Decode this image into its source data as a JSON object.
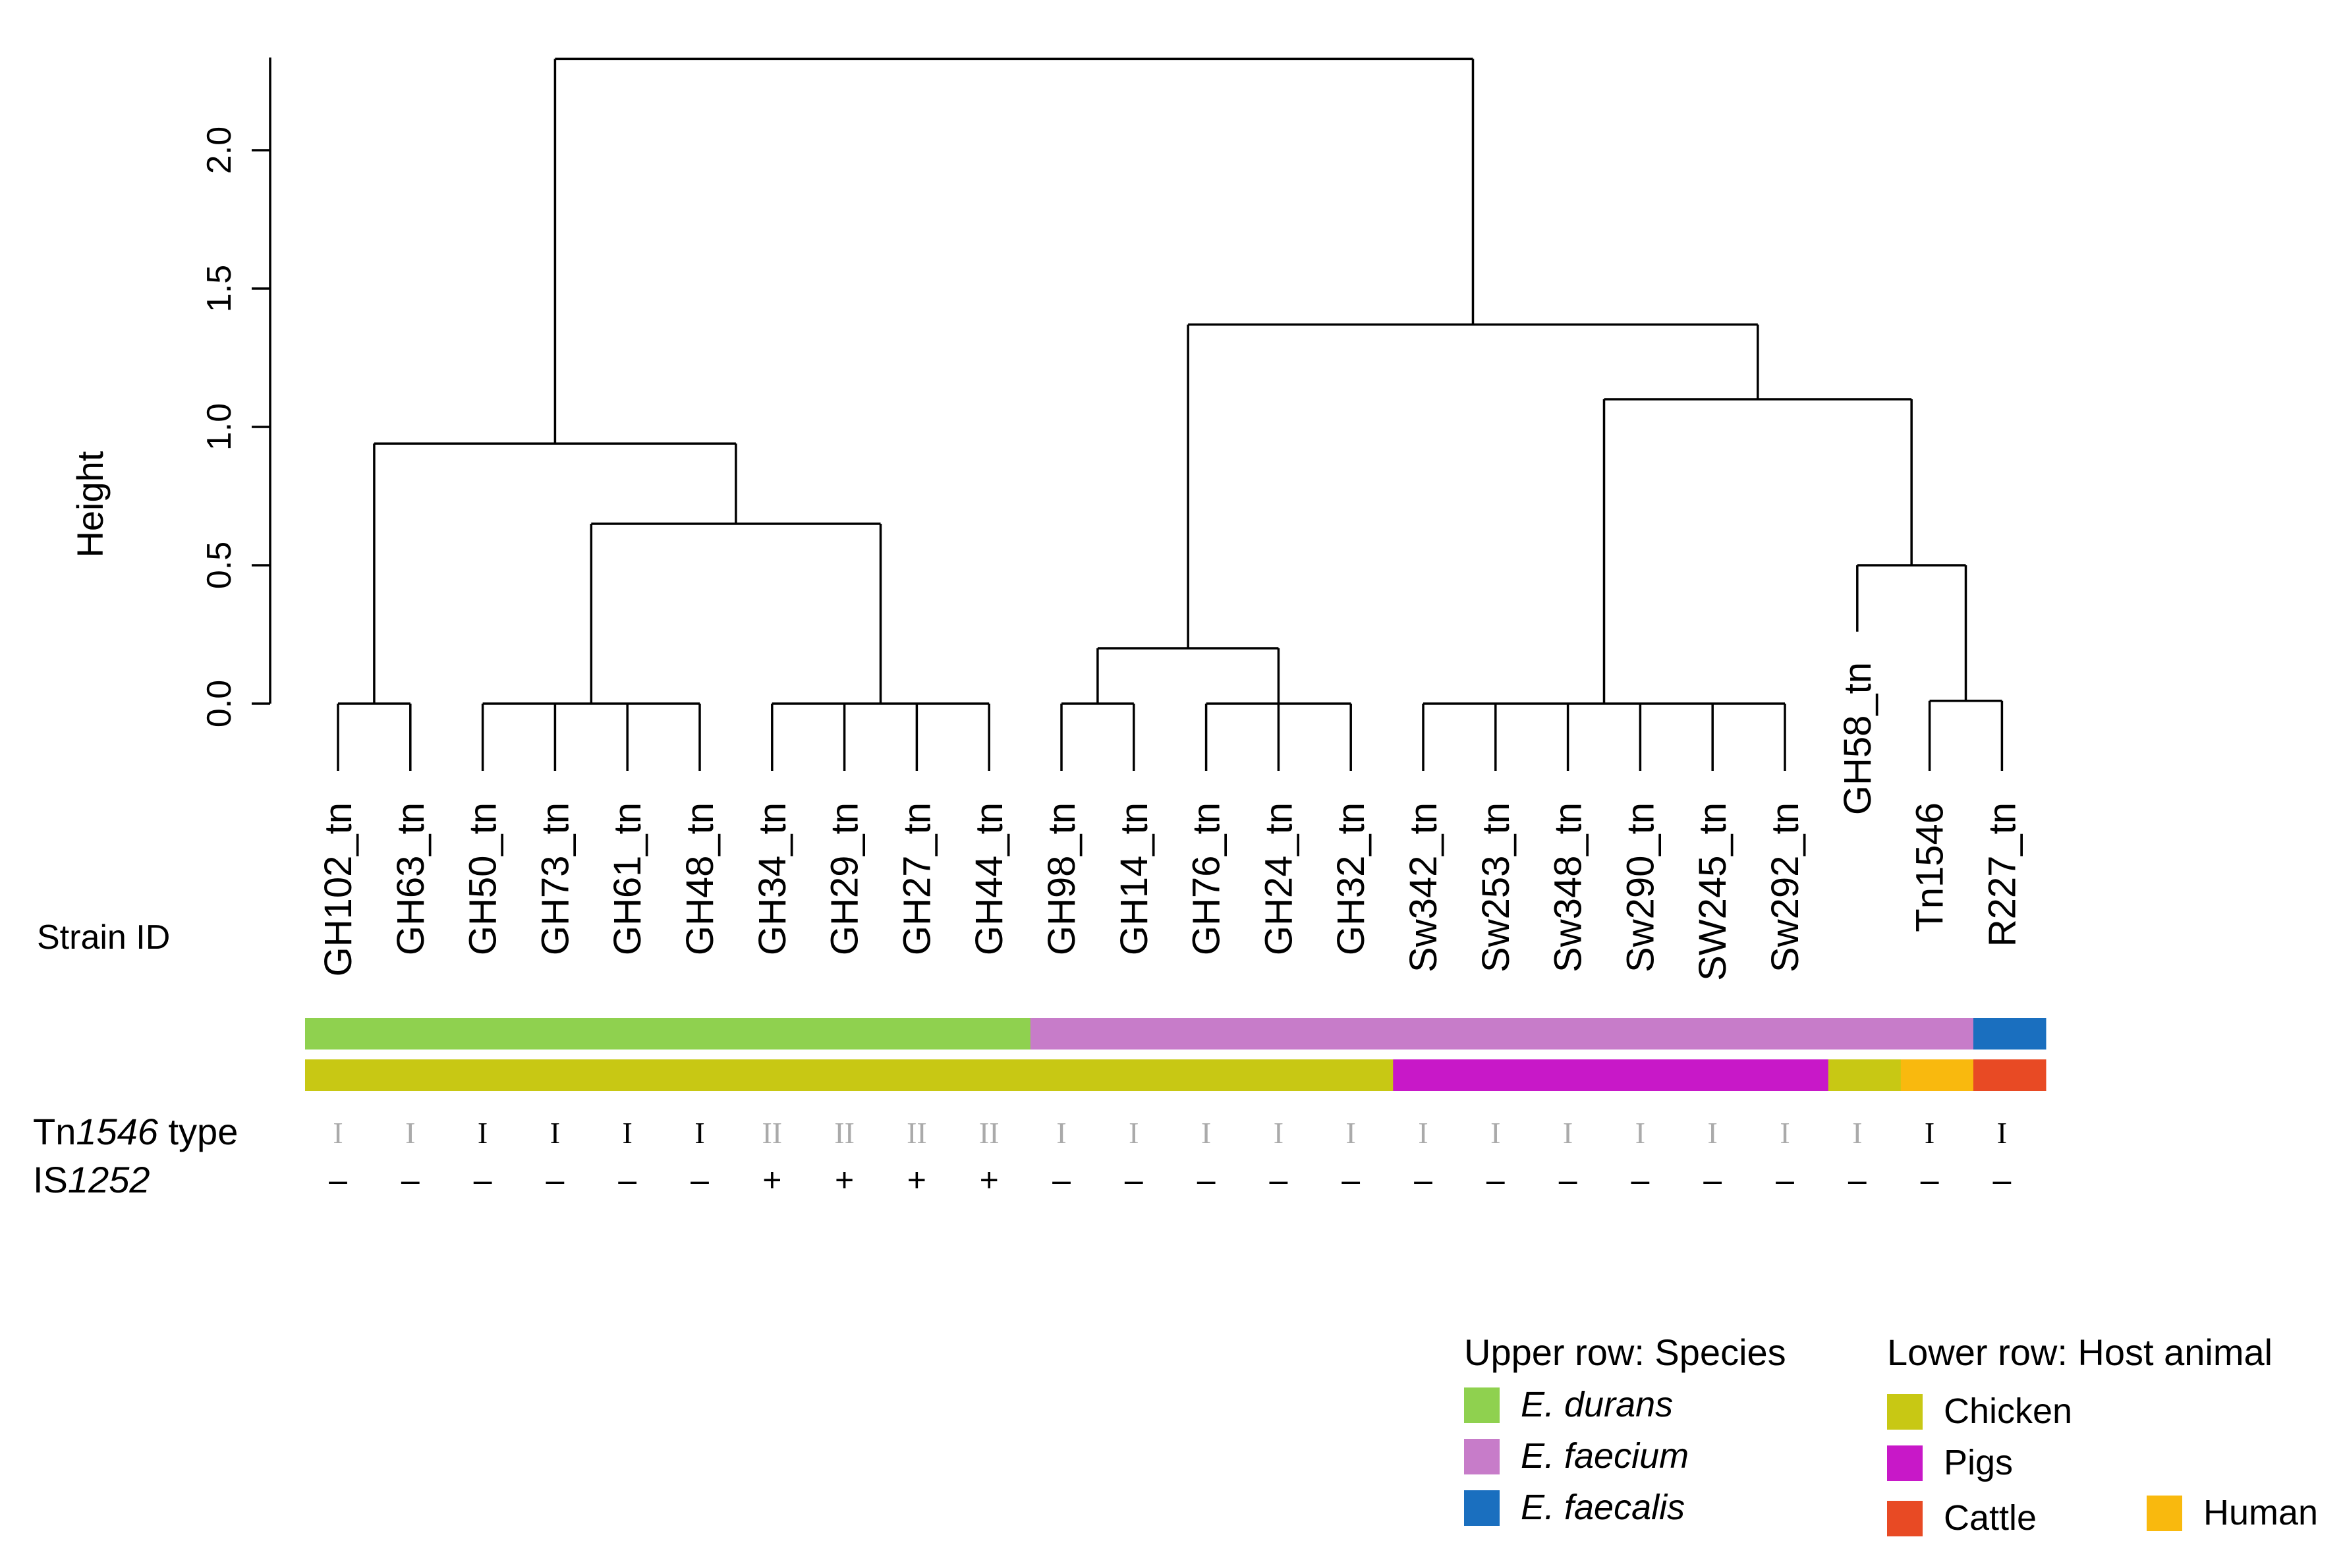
{
  "chart_data": {
    "type": "dendrogram",
    "ylabel": "Height",
    "ylim": [
      0,
      2.33
    ],
    "yticks": [
      0.0,
      0.5,
      1.0,
      1.5,
      2.0
    ],
    "ytick_labels": [
      "0.0",
      "0.5",
      "1.0",
      "1.5",
      "2.0"
    ],
    "leaves": [
      "GH102_tn",
      "GH63_tn",
      "GH50_tn",
      "GH73_tn",
      "GH61_tn",
      "GH48_tn",
      "GH34_tn",
      "GH29_tn",
      "GH27_tn",
      "GH44_tn",
      "GH98_tn",
      "GH14_tn",
      "GH76_tn",
      "GH24_tn",
      "GH32_tn",
      "Sw342_tn",
      "Sw253_tn",
      "Sw348_tn",
      "Sw290_tn",
      "SW245_tn",
      "Sw292_tn",
      "GH58_tn",
      "Tn1546",
      "R227_tn"
    ],
    "merges": [
      {
        "name": "m1",
        "children": [
          "GH102_tn",
          "GH63_tn"
        ],
        "height": 0.0
      },
      {
        "name": "m2",
        "children": [
          "GH50_tn",
          "GH73_tn",
          "GH61_tn",
          "GH48_tn"
        ],
        "height": 0.0
      },
      {
        "name": "m3",
        "children": [
          "GH34_tn",
          "GH29_tn",
          "GH27_tn",
          "GH44_tn"
        ],
        "height": 0.0
      },
      {
        "name": "m4",
        "children": [
          "GH98_tn",
          "GH14_tn"
        ],
        "height": 0.0
      },
      {
        "name": "m5",
        "children": [
          "GH76_tn",
          "GH24_tn",
          "GH32_tn"
        ],
        "height": 0.0
      },
      {
        "name": "m6",
        "children": [
          "Sw342_tn",
          "Sw253_tn",
          "Sw348_tn",
          "Sw290_tn",
          "SW245_tn",
          "Sw292_tn"
        ],
        "height": 0.0
      },
      {
        "name": "m7",
        "children": [
          "Tn1546",
          "R227_tn"
        ],
        "height": 0.01
      },
      {
        "name": "m8",
        "children": [
          "m2",
          "m3"
        ],
        "height": 0.65
      },
      {
        "name": "m9",
        "children": [
          "m1",
          "m8"
        ],
        "height": 0.94
      },
      {
        "name": "m10",
        "children": [
          "m4",
          "m5"
        ],
        "height": 0.2
      },
      {
        "name": "m11",
        "children": [
          "GH58_tn",
          "m7"
        ],
        "height": 0.5
      },
      {
        "name": "m12",
        "children": [
          "m6",
          "m11"
        ],
        "height": 1.1
      },
      {
        "name": "m13",
        "children": [
          "m10",
          "m12"
        ],
        "height": 1.37
      },
      {
        "name": "m14",
        "children": [
          "m9",
          "m13"
        ],
        "height": 2.33
      }
    ],
    "leaf_hang": {
      "GH58_tn": 0.26
    },
    "row_labels": {
      "strain_id": "Strain ID",
      "tn_prefix": "Tn",
      "tn_italic": "1546",
      "tn_suffix": " type",
      "is_prefix": "IS",
      "is_italic": "1252"
    },
    "species_row": [
      "E. durans",
      "E. durans",
      "E. durans",
      "E. durans",
      "E. durans",
      "E. durans",
      "E. durans",
      "E. durans",
      "E. durans",
      "E. durans",
      "E. faecium",
      "E. faecium",
      "E. faecium",
      "E. faecium",
      "E. faecium",
      "E. faecium",
      "E. faecium",
      "E. faecium",
      "E. faecium",
      "E. faecium",
      "E. faecium",
      "E. faecium",
      "E. faecium",
      "E. faecalis"
    ],
    "host_row": [
      "Chicken",
      "Chicken",
      "Chicken",
      "Chicken",
      "Chicken",
      "Chicken",
      "Chicken",
      "Chicken",
      "Chicken",
      "Chicken",
      "Chicken",
      "Chicken",
      "Chicken",
      "Chicken",
      "Chicken",
      "Pigs",
      "Pigs",
      "Pigs",
      "Pigs",
      "Pigs",
      "Pigs",
      "Chicken",
      "Human",
      "Cattle"
    ],
    "tn1546_type": [
      "I",
      "I",
      "I",
      "I",
      "I",
      "I",
      "II",
      "II",
      "II",
      "II",
      "I",
      "I",
      "I",
      "I",
      "I",
      "I",
      "I",
      "I",
      "I",
      "I",
      "I",
      "I",
      "I",
      "I"
    ],
    "tn1546_type_emphasis": [
      false,
      false,
      true,
      true,
      true,
      true,
      false,
      false,
      false,
      false,
      false,
      false,
      false,
      false,
      false,
      false,
      false,
      false,
      false,
      false,
      false,
      false,
      true,
      true
    ],
    "is1252": [
      "–",
      "–",
      "–",
      "–",
      "–",
      "–",
      "+",
      "+",
      "+",
      "+",
      "–",
      "–",
      "–",
      "–",
      "–",
      "–",
      "–",
      "–",
      "–",
      "–",
      "–",
      "–",
      "–",
      "–"
    ],
    "legend_species": {
      "title": "Upper row: Species",
      "items": [
        {
          "label": "E. durans",
          "color": "#8fd14f"
        },
        {
          "label": "E. faecium",
          "color": "#c77cc9"
        },
        {
          "label": "E. faecalis",
          "color": "#1a6fbf"
        }
      ]
    },
    "legend_host": {
      "title": "Lower row: Host animal",
      "items": [
        {
          "label": "Chicken",
          "color": "#c8c814"
        },
        {
          "label": "Pigs",
          "color": "#c818c8"
        },
        {
          "label": "Cattle",
          "color": "#e84a24"
        },
        {
          "label": "Human",
          "color": "#f9b90e"
        }
      ]
    },
    "colors": {
      "line": "#000000",
      "emphasis_text": "#000000",
      "muted_text": "#aaaaaa"
    }
  }
}
